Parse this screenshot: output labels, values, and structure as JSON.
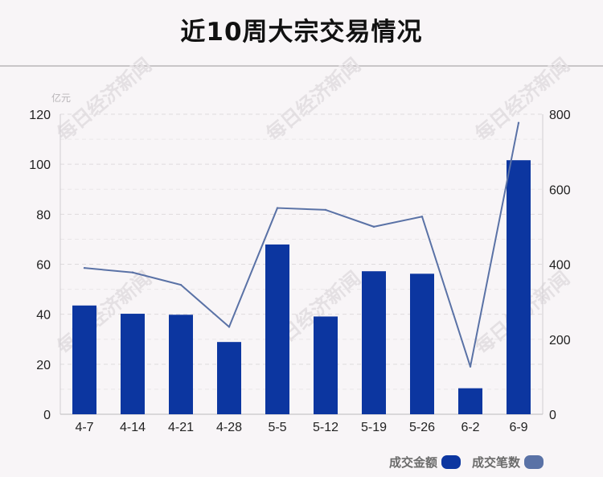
{
  "title": "近10周大宗交易情况",
  "unit_label": "亿元",
  "watermark": "每日经济新闻",
  "chart_data": {
    "type": "bar",
    "categories": [
      "4-7",
      "4-14",
      "4-21",
      "4-28",
      "5-5",
      "5-12",
      "5-19",
      "5-26",
      "6-2",
      "6-9"
    ],
    "series": [
      {
        "name": "成交金额",
        "type": "bar",
        "axis": "left",
        "color": "#0c36a0",
        "values": [
          43.5,
          40.2,
          39.8,
          28.9,
          67.9,
          39.1,
          57.2,
          56.2,
          10.4,
          101.6
        ]
      },
      {
        "name": "成交笔数",
        "type": "line",
        "axis": "right",
        "color": "#5a72a6",
        "values": [
          390,
          378,
          345,
          233,
          550,
          545,
          500,
          527,
          127,
          777
        ]
      }
    ],
    "y_left": {
      "ylim": [
        0,
        120
      ],
      "ticks": [
        0,
        20,
        40,
        60,
        80,
        100,
        120
      ],
      "unit": "亿元"
    },
    "y_right": {
      "ylim": [
        0,
        800
      ],
      "ticks": [
        0,
        200,
        400,
        600,
        800
      ]
    },
    "grid": true,
    "legend_position": "bottom-right"
  }
}
